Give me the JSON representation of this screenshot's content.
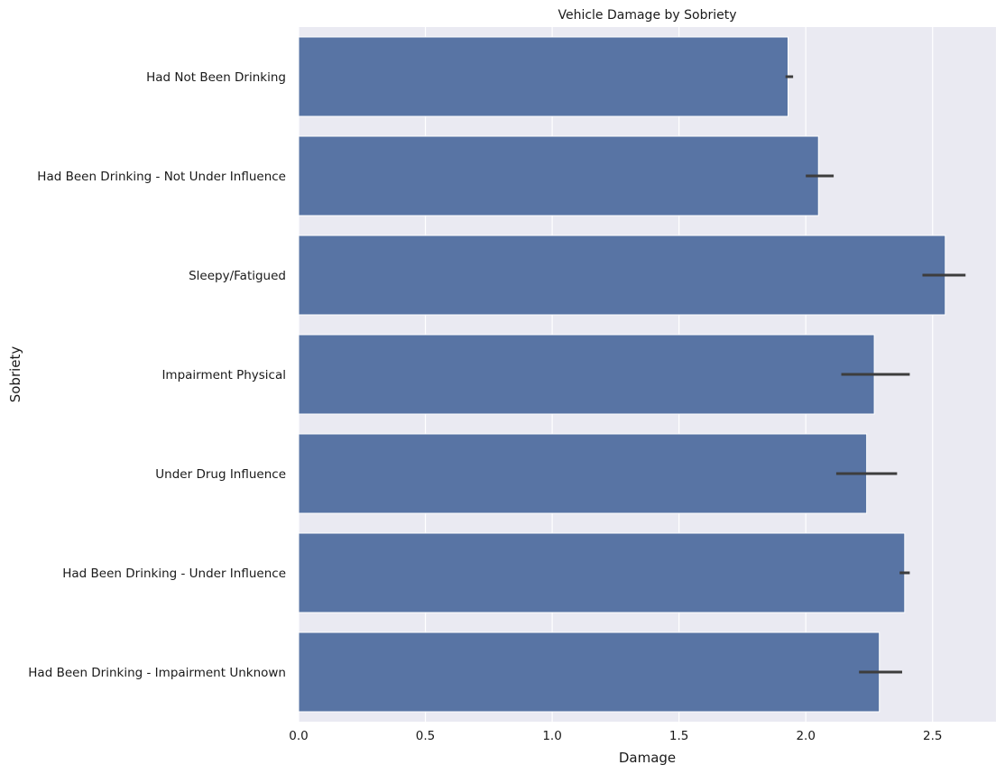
{
  "chart_data": {
    "type": "bar",
    "orientation": "horizontal",
    "title": "Vehicle Damage by Sobriety",
    "xlabel": "Damage",
    "ylabel": "Sobriety",
    "xlim": [
      0,
      2.75
    ],
    "xticks": [
      0.0,
      0.5,
      1.0,
      1.5,
      2.0,
      2.5
    ],
    "xtick_labels": [
      "0.0",
      "0.5",
      "1.0",
      "1.5",
      "2.0",
      "2.5"
    ],
    "grid": true,
    "categories": [
      "Had Not Been Drinking",
      "Had Been Drinking - Not Under Influence",
      "Sleepy/Fatigued",
      "Impairment Physical",
      "Under Drug Influence",
      "Had Been Drinking - Under Influence",
      "Had Been Drinking - Impairment Unknown"
    ],
    "values": [
      1.93,
      2.05,
      2.55,
      2.27,
      2.24,
      2.39,
      2.29
    ],
    "error_low": [
      1.92,
      2.0,
      2.46,
      2.14,
      2.12,
      2.37,
      2.21
    ],
    "error_high": [
      1.95,
      2.11,
      2.63,
      2.41,
      2.36,
      2.41,
      2.38
    ],
    "colors": {
      "bar": "#5874a4",
      "error": "#3d3d3d",
      "plot_background": "#eaeaf2",
      "grid": "#ffffff"
    }
  }
}
